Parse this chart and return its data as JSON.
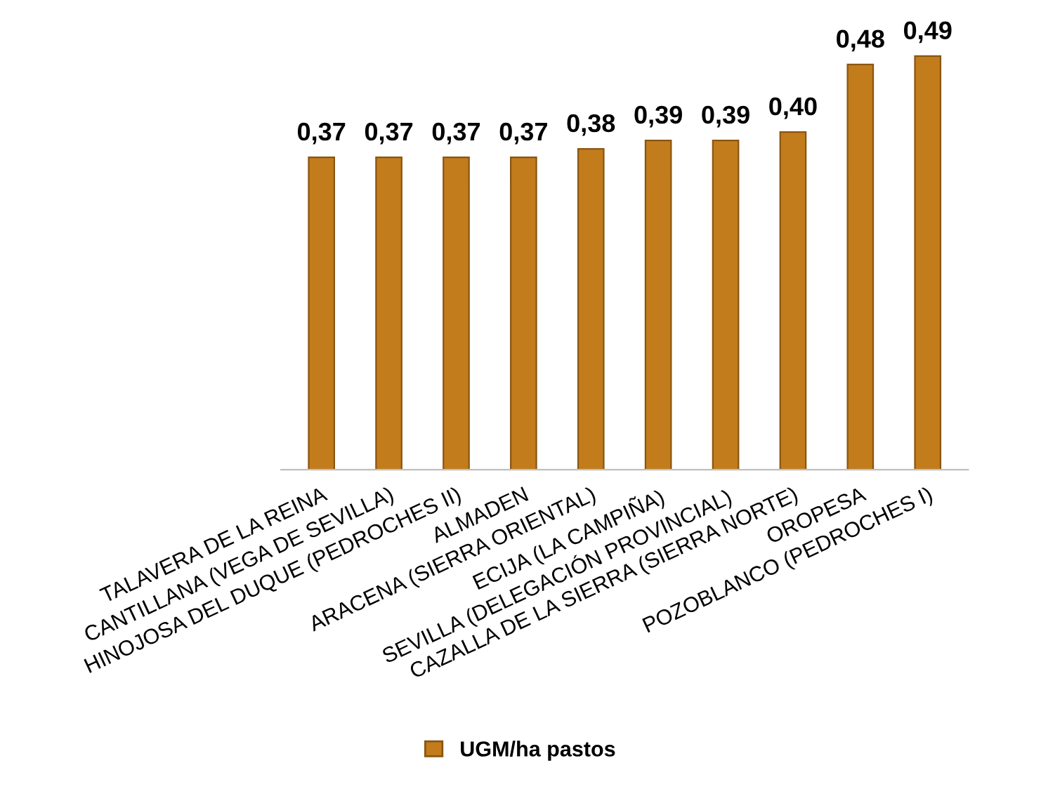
{
  "chart_data": {
    "type": "bar",
    "categories": [
      "TALAVERA DE LA REINA",
      "CANTILLANA (VEGA DE SEVILLA)",
      "HINOJOSA DEL DUQUE (PEDROCHES II)",
      "ALMADEN",
      "ARACENA (SIERRA ORIENTAL)",
      "ECIJA (LA CAMPIÑA)",
      "SEVILLA (DELEGACIÓN PROVINCIAL)",
      "CAZALLA DE LA SIERRA (SIERRA NORTE)",
      "OROPESA",
      "POZOBLANCO (PEDROCHES I)"
    ],
    "series": [
      {
        "name": "UGM/ha pastos",
        "color": "#c27c1c",
        "values": [
          0.37,
          0.37,
          0.37,
          0.37,
          0.38,
          0.39,
          0.39,
          0.4,
          0.48,
          0.49
        ],
        "value_labels": [
          "0,37",
          "0,37",
          "0,37",
          "0,37",
          "0,38",
          "0,39",
          "0,39",
          "0,40",
          "0,48",
          "0,49"
        ]
      }
    ],
    "legend": "bottom",
    "grid": false
  }
}
